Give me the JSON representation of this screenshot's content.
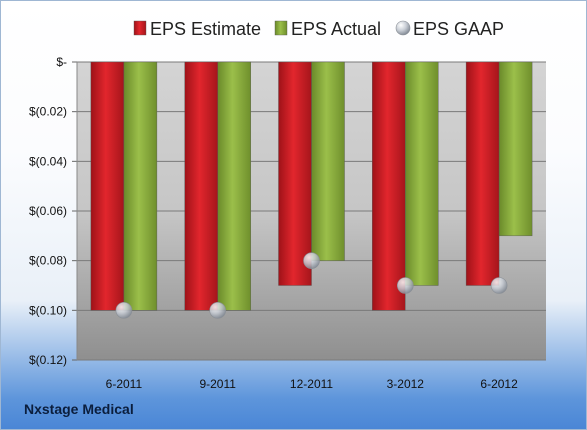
{
  "chart_data": {
    "type": "bar",
    "title": "",
    "xlabel": "",
    "ylabel": "",
    "categories": [
      "6-2011",
      "9-2011",
      "12-2011",
      "3-2012",
      "6-2012"
    ],
    "series": [
      {
        "name": "EPS Estimate",
        "kind": "bar",
        "color": "#d8232a",
        "values": [
          -0.1,
          -0.1,
          -0.09,
          -0.1,
          -0.09
        ]
      },
      {
        "name": "EPS Actual",
        "kind": "bar",
        "color": "#8fb13e",
        "values": [
          -0.1,
          -0.1,
          -0.08,
          -0.09,
          -0.07
        ]
      },
      {
        "name": "EPS GAAP",
        "kind": "marker",
        "color": "#c7ccd3",
        "values": [
          -0.1,
          -0.1,
          -0.08,
          -0.09,
          -0.09
        ]
      }
    ],
    "ylim": [
      -0.12,
      0
    ],
    "yticks": [
      {
        "value": 0,
        "label": "$-"
      },
      {
        "value": -0.02,
        "label": "$(0.02)"
      },
      {
        "value": -0.04,
        "label": "$(0.04)"
      },
      {
        "value": -0.06,
        "label": "$(0.06)"
      },
      {
        "value": -0.08,
        "label": "$(0.08)"
      },
      {
        "value": -0.1,
        "label": "$(0.10)"
      },
      {
        "value": -0.12,
        "label": "$(0.12)"
      }
    ],
    "grid": true,
    "legend": "top"
  },
  "footer": {
    "company": "Nxstage Medical"
  }
}
